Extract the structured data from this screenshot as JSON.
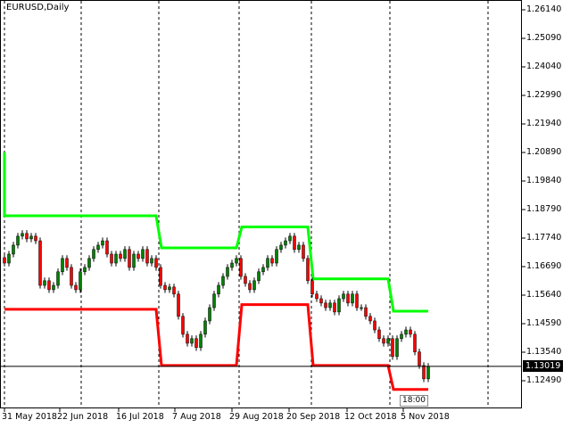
{
  "chart_data": {
    "type": "candlestick",
    "title": "EURUSD,Daily",
    "symbol": "EURUSD",
    "timeframe": "Daily",
    "ylim": [
      1.1205,
      1.265
    ],
    "y_ticks": [
      "1.26140",
      "1.25090",
      "1.24040",
      "1.22990",
      "1.21940",
      "1.20890",
      "1.19840",
      "1.18790",
      "1.17740",
      "1.16690",
      "1.15640",
      "1.14590",
      "1.13540",
      "1.12490"
    ],
    "x_ticks": [
      "31 May 2018",
      "22 Jun 2018",
      "16 Jul 2018",
      "7 Aug 2018",
      "29 Aug 2018",
      "20 Sep 2018",
      "12 Oct 2018",
      "5 Nov 2018"
    ],
    "current_price": "1.13019",
    "grid": "vertical dashed",
    "closes": [
      1.1682,
      1.1715,
      1.1748,
      1.1781,
      1.1791,
      1.1771,
      1.1781,
      1.1764,
      1.16,
      1.1617,
      1.1584,
      1.16,
      1.165,
      1.1699,
      1.1666,
      1.16,
      1.1584,
      1.165,
      1.1666,
      1.1699,
      1.1732,
      1.1748,
      1.1764,
      1.1715,
      1.1682,
      1.1715,
      1.1699,
      1.1732,
      1.1666,
      1.1715,
      1.1699,
      1.1732,
      1.1682,
      1.1699,
      1.1666,
      1.16,
      1.1584,
      1.1594,
      1.1568,
      1.1486,
      1.142,
      1.1387,
      1.1404,
      1.1371,
      1.142,
      1.1469,
      1.1518,
      1.1568,
      1.16,
      1.1633,
      1.1666,
      1.1682,
      1.1699,
      1.1633,
      1.1607,
      1.1584,
      1.1617,
      1.165,
      1.1666,
      1.1699,
      1.1682,
      1.1732,
      1.1748,
      1.1764,
      1.1781,
      1.1732,
      1.1748,
      1.1699,
      1.1617,
      1.1568,
      1.1551,
      1.1535,
      1.1518,
      1.1535,
      1.1502,
      1.1551,
      1.1568,
      1.1535,
      1.1568,
      1.1518,
      1.1518,
      1.1486,
      1.1469,
      1.1436,
      1.1404,
      1.1387,
      1.1404,
      1.1338,
      1.1404,
      1.142,
      1.1436,
      1.142,
      1.1355,
      1.1305,
      1.1256,
      1.1302
    ],
    "upper_channel": {
      "color": "#00ff00",
      "start_price": 1.2089,
      "steps": [
        [
          0,
          34,
          1.1856
        ],
        [
          35,
          52,
          1.1738
        ],
        [
          53,
          68,
          1.1815
        ],
        [
          69,
          86,
          1.1624
        ],
        [
          87,
          95,
          1.1505
        ]
      ]
    },
    "lower_channel": {
      "color": "#ff0000",
      "steps": [
        [
          0,
          34,
          1.1512
        ],
        [
          35,
          52,
          1.1305
        ],
        [
          53,
          68,
          1.1529
        ],
        [
          69,
          86,
          1.1305
        ],
        [
          87,
          95,
          1.1217
        ]
      ]
    },
    "colors": {
      "bull": "#008000",
      "bear": "#ff0000"
    }
  },
  "timeline_label": "18:00"
}
